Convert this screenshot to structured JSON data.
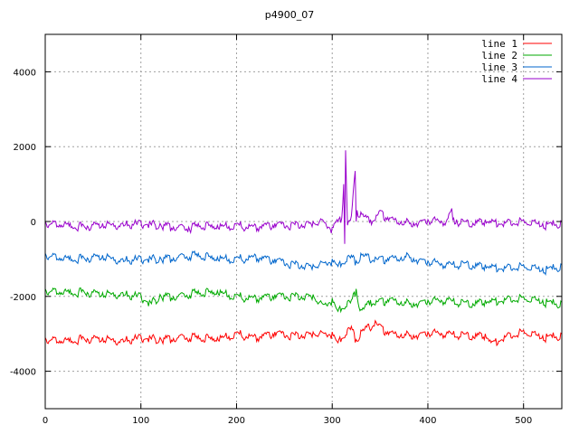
{
  "chart_data": {
    "type": "line",
    "title": "p4900_07",
    "xlabel": "",
    "ylabel": "",
    "xlim": [
      0,
      540
    ],
    "ylim": [
      -5000,
      5000
    ],
    "x_ticks": [
      0,
      100,
      200,
      300,
      400,
      500
    ],
    "y_ticks": [
      -4000,
      -2000,
      0,
      2000,
      4000
    ],
    "grid": true,
    "legend_position": "top-right",
    "series": [
      {
        "name": "line 1",
        "color": "#ff0000",
        "x": [
          0,
          20,
          40,
          60,
          80,
          100,
          120,
          140,
          160,
          180,
          200,
          220,
          240,
          260,
          280,
          300,
          305,
          320,
          325,
          330,
          345,
          352,
          360,
          380,
          400,
          420,
          440,
          460,
          467,
          480,
          500,
          520,
          540
        ],
        "y": [
          -3100,
          -3150,
          -3100,
          -3100,
          -3150,
          -3050,
          -3100,
          -3050,
          -3050,
          -3100,
          -2950,
          -3050,
          -2950,
          -3000,
          -2950,
          -2950,
          -3200,
          -2800,
          -3150,
          -2900,
          -2650,
          -2800,
          -2950,
          -3000,
          -2950,
          -2950,
          -3000,
          -3000,
          -3200,
          -3050,
          -2900,
          -3050,
          -3000
        ]
      },
      {
        "name": "line 2",
        "color": "#00aa00",
        "x": [
          0,
          20,
          40,
          60,
          80,
          100,
          110,
          120,
          140,
          160,
          180,
          200,
          220,
          240,
          260,
          280,
          290,
          300,
          305,
          320,
          325,
          330,
          340,
          360,
          380,
          400,
          420,
          440,
          460,
          480,
          500,
          520,
          540
        ],
        "y": [
          -1800,
          -1850,
          -1850,
          -1900,
          -1900,
          -1950,
          -2150,
          -1950,
          -1950,
          -1850,
          -1850,
          -1950,
          -2000,
          -1950,
          -1950,
          -1950,
          -2200,
          -2050,
          -2350,
          -2100,
          -1800,
          -2350,
          -2100,
          -2050,
          -2150,
          -2100,
          -2050,
          -2150,
          -2100,
          -2050,
          -2000,
          -2100,
          -2150
        ]
      },
      {
        "name": "line 3",
        "color": "#0066cc",
        "x": [
          0,
          20,
          40,
          60,
          80,
          100,
          120,
          140,
          160,
          180,
          200,
          220,
          240,
          260,
          280,
          300,
          305,
          320,
          325,
          330,
          345,
          360,
          380,
          400,
          420,
          440,
          460,
          480,
          500,
          520,
          540
        ],
        "y": [
          -850,
          -950,
          -950,
          -900,
          -1000,
          -950,
          -950,
          -900,
          -850,
          -950,
          -950,
          -900,
          -1000,
          -1100,
          -1150,
          -1000,
          -1150,
          -900,
          -1050,
          -850,
          -950,
          -950,
          -900,
          -1050,
          -1100,
          -1100,
          -1150,
          -1200,
          -1150,
          -1250,
          -1150
        ]
      },
      {
        "name": "line 4",
        "color": "#9900cc",
        "x": [
          0,
          20,
          40,
          60,
          80,
          100,
          120,
          140,
          150,
          160,
          180,
          200,
          220,
          240,
          260,
          280,
          290,
          300,
          305,
          310,
          312,
          313,
          314,
          316,
          320,
          324,
          325,
          326,
          330,
          340,
          350,
          360,
          380,
          400,
          420,
          425,
          426,
          430,
          440,
          460,
          480,
          500,
          520,
          540
        ],
        "y": [
          0,
          -50,
          -100,
          -50,
          -50,
          0,
          -50,
          -100,
          -150,
          -50,
          -100,
          -50,
          -100,
          -50,
          -50,
          0,
          50,
          -150,
          50,
          100,
          1000,
          -600,
          1900,
          -100,
          150,
          1350,
          0,
          300,
          250,
          50,
          300,
          100,
          0,
          50,
          50,
          350,
          50,
          50,
          0,
          50,
          0,
          50,
          -50,
          0
        ]
      }
    ]
  }
}
